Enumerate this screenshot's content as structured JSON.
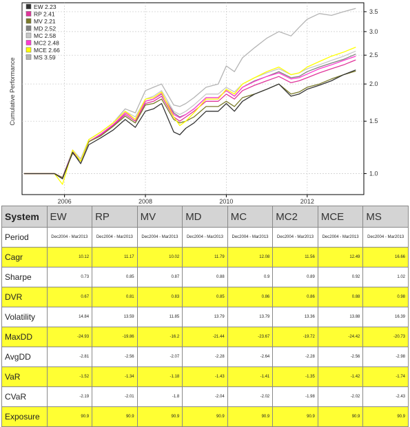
{
  "chart_data": {
    "type": "line",
    "title": "",
    "xlabel": "",
    "ylabel": "Cumulative Performance",
    "y_scale": "log",
    "y_ticks": [
      "1.0",
      "1.5",
      "2.0",
      "2.5",
      "3.0",
      "3.5"
    ],
    "x_ticks": [
      "2006",
      "2008",
      "2010",
      "2012"
    ],
    "xlim": [
      2004.95,
      2013.4
    ],
    "ylim": [
      0.85,
      3.75
    ],
    "grid": true,
    "legend_position": "top-left",
    "x": [
      2005.0,
      2005.75,
      2005.95,
      2006.2,
      2006.4,
      2006.6,
      2006.9,
      2007.2,
      2007.5,
      2007.75,
      2008.0,
      2008.2,
      2008.4,
      2008.7,
      2008.85,
      2009.0,
      2009.2,
      2009.5,
      2009.8,
      2010.0,
      2010.2,
      2010.4,
      2010.7,
      2011.0,
      2011.3,
      2011.6,
      2011.8,
      2012.0,
      2012.3,
      2012.6,
      2012.9,
      2013.2
    ],
    "series": [
      {
        "name": "EW 2.23",
        "color": "#333333",
        "values": [
          1.0,
          1.0,
          0.96,
          1.18,
          1.08,
          1.25,
          1.32,
          1.4,
          1.52,
          1.43,
          1.62,
          1.65,
          1.72,
          1.38,
          1.35,
          1.42,
          1.48,
          1.62,
          1.62,
          1.72,
          1.62,
          1.75,
          1.85,
          1.92,
          2.0,
          1.82,
          1.85,
          1.92,
          1.98,
          2.05,
          2.15,
          2.23
        ]
      },
      {
        "name": "RP 2.41",
        "color": "#e0359a",
        "values": [
          1.0,
          1.0,
          0.97,
          1.18,
          1.1,
          1.28,
          1.35,
          1.45,
          1.58,
          1.5,
          1.72,
          1.75,
          1.82,
          1.55,
          1.5,
          1.55,
          1.62,
          1.75,
          1.75,
          1.85,
          1.78,
          1.9,
          1.98,
          2.05,
          2.12,
          2.02,
          2.05,
          2.1,
          2.18,
          2.25,
          2.32,
          2.41
        ]
      },
      {
        "name": "MV 2.21",
        "color": "#7a7a2a",
        "values": [
          1.0,
          1.0,
          0.97,
          1.17,
          1.1,
          1.28,
          1.34,
          1.44,
          1.56,
          1.48,
          1.7,
          1.72,
          1.78,
          1.52,
          1.48,
          1.5,
          1.55,
          1.68,
          1.68,
          1.75,
          1.68,
          1.8,
          1.85,
          1.92,
          2.0,
          1.85,
          1.88,
          1.95,
          2.0,
          2.08,
          2.15,
          2.21
        ]
      },
      {
        "name": "MD 2.52",
        "color": "#808080",
        "values": [
          1.0,
          1.0,
          0.97,
          1.18,
          1.1,
          1.28,
          1.35,
          1.45,
          1.6,
          1.52,
          1.75,
          1.78,
          1.85,
          1.6,
          1.55,
          1.58,
          1.65,
          1.8,
          1.8,
          1.9,
          1.82,
          1.95,
          2.05,
          2.12,
          2.2,
          2.1,
          2.12,
          2.2,
          2.28,
          2.35,
          2.42,
          2.52
        ]
      },
      {
        "name": "MC 2.58",
        "color": "#c8c8c8",
        "values": [
          1.0,
          1.0,
          0.97,
          1.2,
          1.12,
          1.3,
          1.38,
          1.48,
          1.62,
          1.55,
          1.78,
          1.82,
          1.9,
          1.62,
          1.58,
          1.62,
          1.7,
          1.85,
          1.85,
          1.95,
          1.88,
          2.0,
          2.1,
          2.18,
          2.25,
          2.15,
          2.18,
          2.25,
          2.32,
          2.4,
          2.48,
          2.58
        ]
      },
      {
        "name": "MC2 2.48",
        "color": "#ff3cd0",
        "values": [
          1.0,
          1.0,
          0.97,
          1.18,
          1.1,
          1.28,
          1.36,
          1.46,
          1.6,
          1.52,
          1.75,
          1.78,
          1.86,
          1.58,
          1.54,
          1.58,
          1.65,
          1.8,
          1.8,
          1.9,
          1.82,
          1.95,
          2.04,
          2.12,
          2.18,
          2.08,
          2.1,
          2.16,
          2.25,
          2.32,
          2.4,
          2.48
        ]
      },
      {
        "name": "MCE 2.66",
        "color": "#ffff00",
        "values": [
          1.0,
          1.0,
          0.92,
          1.2,
          1.1,
          1.3,
          1.38,
          1.48,
          1.62,
          1.52,
          1.78,
          1.8,
          1.88,
          1.55,
          1.45,
          1.5,
          1.6,
          1.78,
          1.78,
          1.92,
          1.85,
          2.0,
          2.1,
          2.2,
          2.28,
          2.15,
          2.18,
          2.28,
          2.38,
          2.48,
          2.56,
          2.66
        ]
      },
      {
        "name": "MS 3.59",
        "color": "#b4b4b4",
        "values": [
          1.0,
          1.0,
          0.97,
          1.2,
          1.12,
          1.3,
          1.38,
          1.48,
          1.65,
          1.6,
          1.9,
          1.95,
          2.0,
          1.7,
          1.68,
          1.72,
          1.8,
          1.95,
          2.0,
          2.3,
          2.2,
          2.45,
          2.65,
          2.85,
          3.0,
          2.9,
          3.1,
          3.3,
          3.45,
          3.4,
          3.5,
          3.59
        ]
      }
    ]
  },
  "table": {
    "headers": [
      "System",
      "EW",
      "RP",
      "MV",
      "MD",
      "MC",
      "MC2",
      "MCE",
      "MS"
    ],
    "rows": [
      {
        "label": "Period",
        "style": "white",
        "values": [
          "Dec2004 - Mar2013",
          "Dec2004 - Mar2013",
          "Dec2004 - Mar2013",
          "Dec2004 - Mar2013",
          "Dec2004 - Mar2013",
          "Dec2004 - Mar2013",
          "Dec2004 - Mar2013",
          "Dec2004 - Mar2013"
        ]
      },
      {
        "label": "Cagr",
        "style": "yellow",
        "values": [
          "10.12",
          "11.17",
          "10.02",
          "11.79",
          "12.08",
          "11.56",
          "12.49",
          "16.66"
        ]
      },
      {
        "label": "Sharpe",
        "style": "white",
        "values": [
          "0.73",
          "0.85",
          "0.87",
          "0.88",
          "0.9",
          "0.89",
          "0.92",
          "1.02"
        ]
      },
      {
        "label": "DVR",
        "style": "yellow",
        "values": [
          "0.67",
          "0.81",
          "0.83",
          "0.85",
          "0.86",
          "0.86",
          "0.88",
          "0.98"
        ]
      },
      {
        "label": "Volatility",
        "style": "white",
        "values": [
          "14.84",
          "13.59",
          "11.85",
          "13.79",
          "13.79",
          "13.36",
          "13.88",
          "16.39"
        ]
      },
      {
        "label": "MaxDD",
        "style": "yellow",
        "values": [
          "-24.93",
          "-19.86",
          "-16.2",
          "-21.44",
          "-23.67",
          "-19.72",
          "-24.42",
          "-20.73"
        ]
      },
      {
        "label": "AvgDD",
        "style": "white",
        "values": [
          "-2.81",
          "-2.56",
          "-2.07",
          "-2.28",
          "-2.64",
          "-2.28",
          "-2.56",
          "-2.98"
        ]
      },
      {
        "label": "VaR",
        "style": "yellow",
        "values": [
          "-1.52",
          "-1.34",
          "-1.18",
          "-1.43",
          "-1.41",
          "-1.35",
          "-1.42",
          "-1.74"
        ]
      },
      {
        "label": "CVaR",
        "style": "white",
        "values": [
          "-2.19",
          "-2.01",
          "-1.8",
          "-2.04",
          "-2.02",
          "-1.98",
          "-2.02",
          "-2.43"
        ]
      },
      {
        "label": "Exposure",
        "style": "yellow",
        "values": [
          "90.9",
          "90.9",
          "90.9",
          "90.9",
          "90.9",
          "90.9",
          "90.9",
          "90.9"
        ]
      }
    ]
  }
}
